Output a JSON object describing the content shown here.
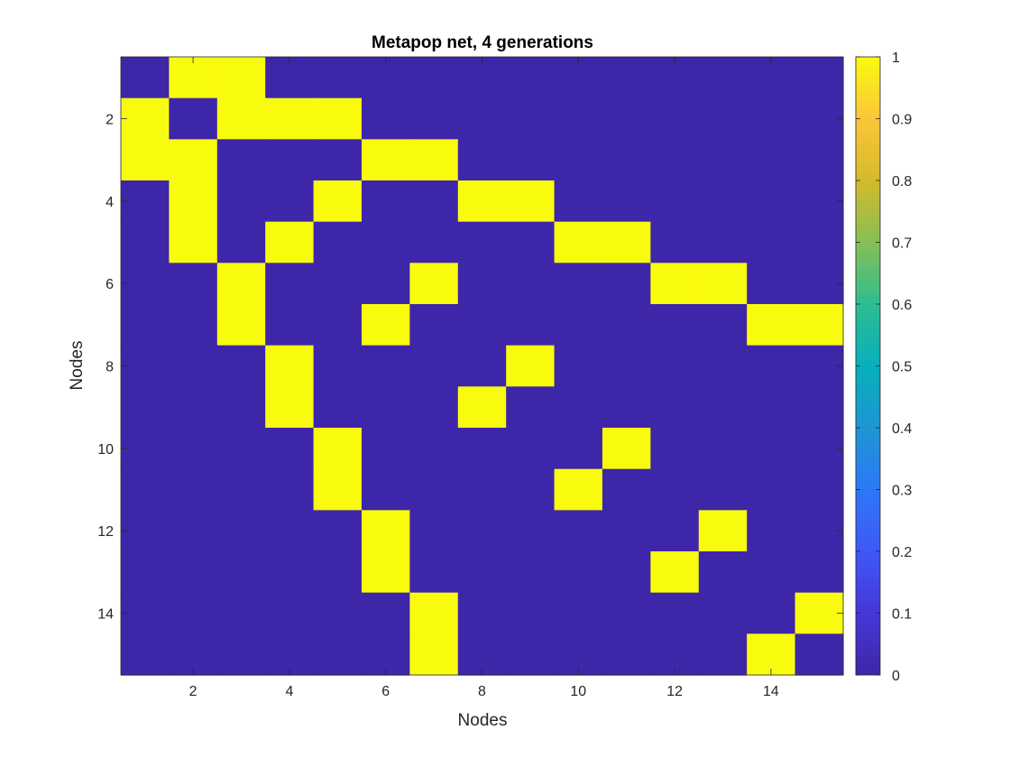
{
  "chart_data": {
    "type": "heatmap",
    "title": "Metapop net, 4 generations",
    "xlabel": "Nodes",
    "ylabel": "Nodes",
    "rows": 15,
    "cols": 15,
    "xlim": [
      0.5,
      15.5
    ],
    "ylim": [
      0.5,
      15.5
    ],
    "y_direction": "reversed",
    "x_ticks": [
      2,
      4,
      6,
      8,
      10,
      12,
      14
    ],
    "y_ticks": [
      2,
      4,
      6,
      8,
      10,
      12,
      14
    ],
    "matrix": [
      [
        0,
        1,
        1,
        0,
        0,
        0,
        0,
        0,
        0,
        0,
        0,
        0,
        0,
        0,
        0
      ],
      [
        1,
        0,
        1,
        1,
        1,
        0,
        0,
        0,
        0,
        0,
        0,
        0,
        0,
        0,
        0
      ],
      [
        1,
        1,
        0,
        0,
        0,
        1,
        1,
        0,
        0,
        0,
        0,
        0,
        0,
        0,
        0
      ],
      [
        0,
        1,
        0,
        0,
        1,
        0,
        0,
        1,
        1,
        0,
        0,
        0,
        0,
        0,
        0
      ],
      [
        0,
        1,
        0,
        1,
        0,
        0,
        0,
        0,
        0,
        1,
        1,
        0,
        0,
        0,
        0
      ],
      [
        0,
        0,
        1,
        0,
        0,
        0,
        1,
        0,
        0,
        0,
        0,
        1,
        1,
        0,
        0
      ],
      [
        0,
        0,
        1,
        0,
        0,
        1,
        0,
        0,
        0,
        0,
        0,
        0,
        0,
        1,
        1
      ],
      [
        0,
        0,
        0,
        1,
        0,
        0,
        0,
        0,
        1,
        0,
        0,
        0,
        0,
        0,
        0
      ],
      [
        0,
        0,
        0,
        1,
        0,
        0,
        0,
        1,
        0,
        0,
        0,
        0,
        0,
        0,
        0
      ],
      [
        0,
        0,
        0,
        0,
        1,
        0,
        0,
        0,
        0,
        0,
        1,
        0,
        0,
        0,
        0
      ],
      [
        0,
        0,
        0,
        0,
        1,
        0,
        0,
        0,
        0,
        1,
        0,
        0,
        0,
        0,
        0
      ],
      [
        0,
        0,
        0,
        0,
        0,
        1,
        0,
        0,
        0,
        0,
        0,
        0,
        1,
        0,
        0
      ],
      [
        0,
        0,
        0,
        0,
        0,
        1,
        0,
        0,
        0,
        0,
        0,
        1,
        0,
        0,
        0
      ],
      [
        0,
        0,
        0,
        0,
        0,
        0,
        1,
        0,
        0,
        0,
        0,
        0,
        0,
        0,
        1
      ],
      [
        0,
        0,
        0,
        0,
        0,
        0,
        1,
        0,
        0,
        0,
        0,
        0,
        0,
        1,
        0
      ]
    ],
    "colorbar": {
      "colormap": "parula",
      "range": [
        0,
        1
      ],
      "ticks": [
        "0",
        "0.1",
        "0.2",
        "0.3",
        "0.4",
        "0.5",
        "0.6",
        "0.7",
        "0.8",
        "0.9",
        "1"
      ],
      "low_color": "#3e26a8",
      "high_color": "#f9fb0e"
    },
    "grid": false
  }
}
